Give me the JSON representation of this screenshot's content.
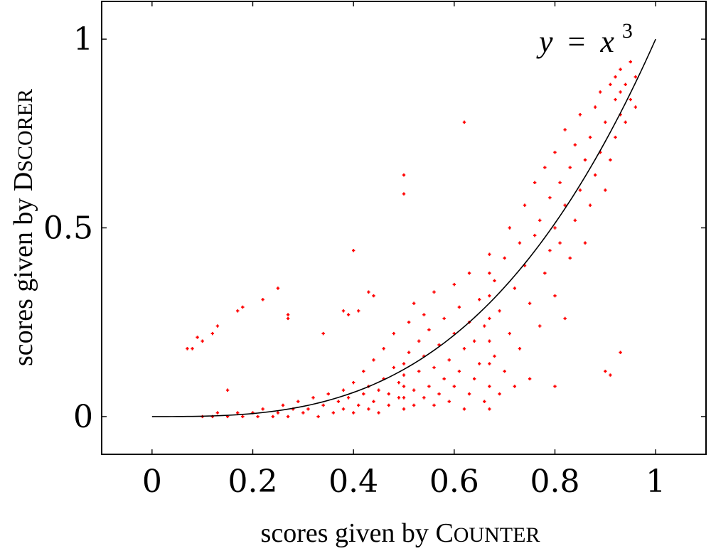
{
  "chart_data": {
    "type": "scatter",
    "xlabel": "scores given by COUNTER",
    "ylabel": "scores given by DSCORER",
    "xlabel_parts": {
      "lead": "scores given by ",
      "initial": "C",
      "rest": "OUNTER"
    },
    "ylabel_parts": {
      "lead": "scores given by ",
      "initial": "D",
      "rest": "SCORER"
    },
    "xlim": [
      -0.1,
      1.1
    ],
    "ylim": [
      -0.1,
      1.1
    ],
    "xticks": [
      0,
      0.2,
      0.4,
      0.6,
      0.8,
      1
    ],
    "xtick_labels": [
      "0",
      "0.2",
      "0.4",
      "0.6",
      "0.8",
      "1"
    ],
    "yticks": [
      0,
      0.5,
      1
    ],
    "ytick_labels": [
      "0",
      "0.5",
      "1"
    ],
    "grid": false,
    "marker_color": "#ff0000",
    "curve_color": "#000000",
    "curve": {
      "equation": "y = x^3",
      "label_y": "y",
      "label_eq": "=",
      "label_x": "x",
      "label_exp": "3"
    },
    "points": [
      [
        0.07,
        0.18
      ],
      [
        0.08,
        0.18
      ],
      [
        0.09,
        0.21
      ],
      [
        0.1,
        0.2
      ],
      [
        0.12,
        0.22
      ],
      [
        0.13,
        0.24
      ],
      [
        0.17,
        0.28
      ],
      [
        0.18,
        0.29
      ],
      [
        0.22,
        0.31
      ],
      [
        0.25,
        0.34
      ],
      [
        0.15,
        0.07
      ],
      [
        0.27,
        0.27
      ],
      [
        0.27,
        0.26
      ],
      [
        0.34,
        0.22
      ],
      [
        0.38,
        0.28
      ],
      [
        0.39,
        0.27
      ],
      [
        0.4,
        0.44
      ],
      [
        0.41,
        0.28
      ],
      [
        0.43,
        0.33
      ],
      [
        0.44,
        0.32
      ],
      [
        0.5,
        0.64
      ],
      [
        0.5,
        0.59
      ],
      [
        0.62,
        0.78
      ],
      [
        0.93,
        0.17
      ],
      [
        0.1,
        0.0
      ],
      [
        0.12,
        0.0
      ],
      [
        0.13,
        0.01
      ],
      [
        0.15,
        0.0
      ],
      [
        0.17,
        0.01
      ],
      [
        0.18,
        0.0
      ],
      [
        0.2,
        0.01
      ],
      [
        0.21,
        0.0
      ],
      [
        0.22,
        0.02
      ],
      [
        0.24,
        0.0
      ],
      [
        0.25,
        0.01
      ],
      [
        0.26,
        0.03
      ],
      [
        0.27,
        0.0
      ],
      [
        0.28,
        0.02
      ],
      [
        0.29,
        0.04
      ],
      [
        0.3,
        0.01
      ],
      [
        0.31,
        0.02
      ],
      [
        0.32,
        0.05
      ],
      [
        0.33,
        0.0
      ],
      [
        0.34,
        0.03
      ],
      [
        0.35,
        0.06
      ],
      [
        0.36,
        0.01
      ],
      [
        0.37,
        0.04
      ],
      [
        0.38,
        0.02
      ],
      [
        0.38,
        0.07
      ],
      [
        0.39,
        0.05
      ],
      [
        0.4,
        0.01
      ],
      [
        0.4,
        0.09
      ],
      [
        0.41,
        0.03
      ],
      [
        0.42,
        0.06
      ],
      [
        0.42,
        0.12
      ],
      [
        0.43,
        0.02
      ],
      [
        0.43,
        0.08
      ],
      [
        0.44,
        0.04
      ],
      [
        0.44,
        0.15
      ],
      [
        0.45,
        0.01
      ],
      [
        0.45,
        0.07
      ],
      [
        0.46,
        0.1
      ],
      [
        0.46,
        0.18
      ],
      [
        0.47,
        0.03
      ],
      [
        0.47,
        0.06
      ],
      [
        0.48,
        0.13
      ],
      [
        0.48,
        0.22
      ],
      [
        0.49,
        0.05
      ],
      [
        0.49,
        0.09
      ],
      [
        0.5,
        0.02
      ],
      [
        0.5,
        0.05
      ],
      [
        0.5,
        0.08
      ],
      [
        0.5,
        0.11
      ],
      [
        0.5,
        0.14
      ],
      [
        0.51,
        0.17
      ],
      [
        0.51,
        0.25
      ],
      [
        0.52,
        0.03
      ],
      [
        0.52,
        0.07
      ],
      [
        0.52,
        0.3
      ],
      [
        0.53,
        0.12
      ],
      [
        0.53,
        0.2
      ],
      [
        0.54,
        0.05
      ],
      [
        0.54,
        0.16
      ],
      [
        0.54,
        0.27
      ],
      [
        0.55,
        0.08
      ],
      [
        0.55,
        0.23
      ],
      [
        0.56,
        0.03
      ],
      [
        0.56,
        0.13
      ],
      [
        0.56,
        0.33
      ],
      [
        0.57,
        0.06
      ],
      [
        0.57,
        0.19
      ],
      [
        0.58,
        0.1
      ],
      [
        0.58,
        0.26
      ],
      [
        0.59,
        0.04
      ],
      [
        0.59,
        0.15
      ],
      [
        0.6,
        0.08
      ],
      [
        0.6,
        0.22
      ],
      [
        0.6,
        0.35
      ],
      [
        0.61,
        0.12
      ],
      [
        0.61,
        0.29
      ],
      [
        0.62,
        0.02
      ],
      [
        0.62,
        0.18
      ],
      [
        0.63,
        0.06
      ],
      [
        0.63,
        0.25
      ],
      [
        0.63,
        0.38
      ],
      [
        0.64,
        0.1
      ],
      [
        0.64,
        0.2
      ],
      [
        0.65,
        0.14
      ],
      [
        0.65,
        0.31
      ],
      [
        0.66,
        0.04
      ],
      [
        0.66,
        0.24
      ],
      [
        0.67,
        0.02
      ],
      [
        0.67,
        0.08
      ],
      [
        0.67,
        0.14
      ],
      [
        0.67,
        0.2
      ],
      [
        0.67,
        0.26
      ],
      [
        0.67,
        0.32
      ],
      [
        0.67,
        0.38
      ],
      [
        0.67,
        0.43
      ],
      [
        0.68,
        0.16
      ],
      [
        0.68,
        0.36
      ],
      [
        0.69,
        0.06
      ],
      [
        0.69,
        0.28
      ],
      [
        0.7,
        0.12
      ],
      [
        0.7,
        0.42
      ],
      [
        0.71,
        0.22
      ],
      [
        0.71,
        0.5
      ],
      [
        0.72,
        0.08
      ],
      [
        0.72,
        0.34
      ],
      [
        0.73,
        0.46
      ],
      [
        0.73,
        0.18
      ],
      [
        0.74,
        0.4
      ],
      [
        0.74,
        0.56
      ],
      [
        0.75,
        0.1
      ],
      [
        0.75,
        0.3
      ],
      [
        0.76,
        0.48
      ],
      [
        0.76,
        0.62
      ],
      [
        0.77,
        0.24
      ],
      [
        0.77,
        0.52
      ],
      [
        0.78,
        0.38
      ],
      [
        0.78,
        0.66
      ],
      [
        0.79,
        0.44
      ],
      [
        0.79,
        0.58
      ],
      [
        0.8,
        0.08
      ],
      [
        0.8,
        0.32
      ],
      [
        0.8,
        0.5
      ],
      [
        0.8,
        0.7
      ],
      [
        0.81,
        0.46
      ],
      [
        0.81,
        0.62
      ],
      [
        0.82,
        0.26
      ],
      [
        0.82,
        0.56
      ],
      [
        0.82,
        0.76
      ],
      [
        0.83,
        0.42
      ],
      [
        0.83,
        0.66
      ],
      [
        0.84,
        0.52
      ],
      [
        0.84,
        0.72
      ],
      [
        0.85,
        0.6
      ],
      [
        0.85,
        0.8
      ],
      [
        0.86,
        0.46
      ],
      [
        0.86,
        0.68
      ],
      [
        0.87,
        0.56
      ],
      [
        0.87,
        0.74
      ],
      [
        0.88,
        0.64
      ],
      [
        0.88,
        0.82
      ],
      [
        0.89,
        0.7
      ],
      [
        0.89,
        0.86
      ],
      [
        0.9,
        0.12
      ],
      [
        0.9,
        0.6
      ],
      [
        0.9,
        0.78
      ],
      [
        0.91,
        0.11
      ],
      [
        0.91,
        0.68
      ],
      [
        0.91,
        0.88
      ],
      [
        0.92,
        0.74
      ],
      [
        0.92,
        0.84
      ],
      [
        0.92,
        0.9
      ],
      [
        0.93,
        0.8
      ],
      [
        0.93,
        0.86
      ],
      [
        0.93,
        0.92
      ],
      [
        0.94,
        0.78
      ],
      [
        0.94,
        0.88
      ],
      [
        0.95,
        0.84
      ],
      [
        0.95,
        0.94
      ],
      [
        0.96,
        0.82
      ],
      [
        0.96,
        0.9
      ]
    ]
  }
}
